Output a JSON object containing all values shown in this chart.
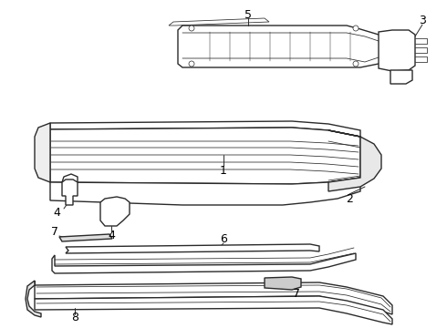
{
  "bg_color": "#ffffff",
  "line_color": "#2a2a2a",
  "lw_main": 1.0,
  "lw_thin": 0.55,
  "lw_detail": 0.35,
  "fig_w": 4.9,
  "fig_h": 3.6,
  "dpi": 100
}
